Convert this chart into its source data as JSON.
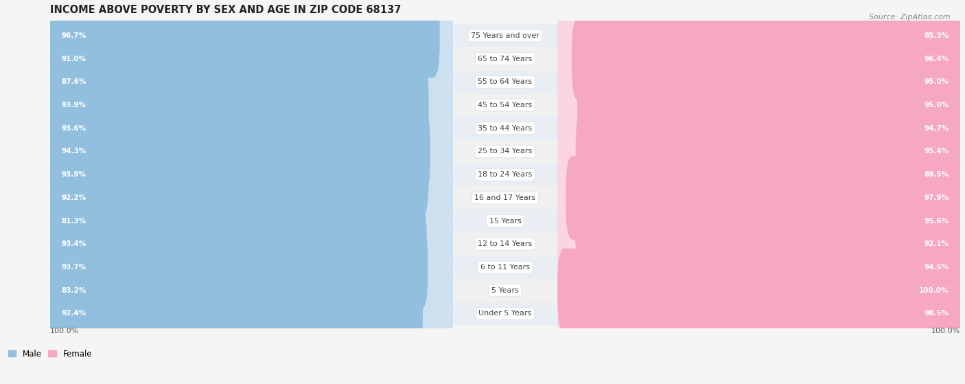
{
  "title": "INCOME ABOVE POVERTY BY SEX AND AGE IN ZIP CODE 68137",
  "source": "Source: ZipAtlas.com",
  "categories": [
    "Under 5 Years",
    "5 Years",
    "6 to 11 Years",
    "12 to 14 Years",
    "15 Years",
    "16 and 17 Years",
    "18 to 24 Years",
    "25 to 34 Years",
    "35 to 44 Years",
    "45 to 54 Years",
    "55 to 64 Years",
    "65 to 74 Years",
    "75 Years and over"
  ],
  "male_values": [
    92.4,
    83.2,
    93.7,
    93.4,
    81.3,
    92.2,
    93.9,
    94.3,
    93.6,
    93.9,
    87.6,
    91.0,
    96.7
  ],
  "female_values": [
    98.5,
    100.0,
    94.5,
    92.1,
    95.6,
    97.9,
    89.5,
    95.4,
    94.7,
    95.0,
    95.0,
    96.4,
    85.3
  ],
  "male_color": "#92bfdd",
  "female_color": "#f5a8bf",
  "male_light_color": "#cce0ef",
  "female_light_color": "#fbd5e2",
  "male_label": "Male",
  "female_label": "Female",
  "bg_color": "#f5f5f5",
  "row_colors": [
    "#e8eef3",
    "#f0f0f0"
  ],
  "title_fontsize": 10.5,
  "source_fontsize": 8,
  "bar_label_fontsize": 7.5,
  "cat_label_fontsize": 8,
  "legend_fontsize": 8.5,
  "max_val": 100.0,
  "x_axis_label": "100.0%"
}
